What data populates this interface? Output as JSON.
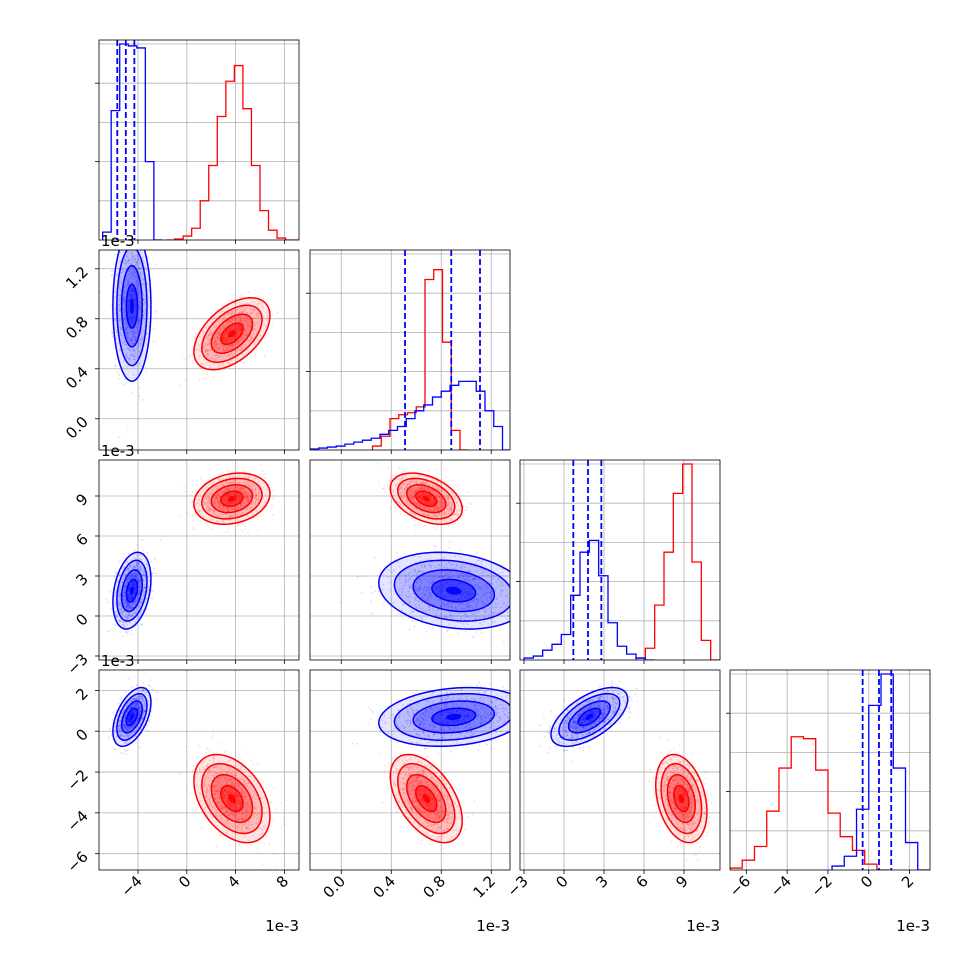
{
  "chart_data": {
    "type": "corner",
    "grid": true,
    "colors": {
      "A": "#0000ff",
      "B": "#ff0000"
    },
    "parameters": [
      {
        "id": "p0",
        "range": [
          -0.0072,
          0.0092
        ],
        "ticks": [
          -0.004,
          0,
          0.004,
          0.008
        ],
        "tick_labels": [
          "−4",
          "0",
          "4",
          "8"
        ],
        "offset": "1e-3",
        "hist_bins": 24,
        "hist": {
          "A": {
            "x": [
              -0.0069,
              -0.0062,
              -0.0055,
              -0.0048,
              -0.0041,
              -0.0034,
              -0.0027
            ],
            "h": [
              0.04,
              0.66,
              1.0,
              0.99,
              0.98,
              0.4,
              0.0
            ]
          },
          "B": {
            "x": [
              -0.0017,
              -0.001,
              -0.0003,
              0.0004,
              0.0011,
              0.0018,
              0.0025,
              0.0032,
              0.0039,
              0.0046,
              0.0053,
              0.006,
              0.0067,
              0.0074,
              0.0081,
              0.0088
            ],
            "h": [
              0.0,
              0.005,
              0.02,
              0.06,
              0.2,
              0.38,
              0.63,
              0.81,
              0.89,
              0.67,
              0.38,
              0.15,
              0.05,
              0.01,
              0.0,
              0.0
            ]
          }
        },
        "quantiles_A": [
          -0.0057,
          -0.005,
          -0.0043
        ]
      },
      {
        "id": "p1",
        "range": [
          -0.00025,
          0.00135
        ],
        "ticks": [
          0,
          0.0004,
          0.0008,
          0.0012
        ],
        "tick_labels": [
          "0.0",
          "0.4",
          "0.8",
          "1.2"
        ],
        "offset": "1e-3",
        "hist": {
          "A": {
            "x": [
              -0.00025,
              -0.00018,
              -0.00011,
              -4e-05,
              3e-05,
              0.0001,
              0.00017,
              0.00024,
              0.00031,
              0.00038,
              0.00045,
              0.00052,
              0.00059,
              0.00066,
              0.00073,
              0.0008,
              0.00087,
              0.00094,
              0.00101,
              0.00108,
              0.00115,
              0.00122,
              0.00129
            ],
            "h": [
              0.005,
              0.01,
              0.015,
              0.02,
              0.03,
              0.04,
              0.05,
              0.06,
              0.08,
              0.1,
              0.12,
              0.16,
              0.2,
              0.23,
              0.27,
              0.3,
              0.33,
              0.35,
              0.35,
              0.3,
              0.2,
              0.12,
              0.0
            ]
          },
          "B": {
            "x": [
              0.00025,
              0.00032,
              0.00039,
              0.00046,
              0.00053,
              0.0006,
              0.00067,
              0.00074,
              0.00081,
              0.00088,
              0.00095
            ],
            "h": [
              0.02,
              0.07,
              0.16,
              0.18,
              0.19,
              0.22,
              0.87,
              0.92,
              0.55,
              0.1,
              0.0
            ]
          }
        },
        "quantiles_A": [
          0.00051,
          0.00088,
          0.00111
        ]
      },
      {
        "id": "p2",
        "range": [
          -0.0033,
          0.0117
        ],
        "ticks": [
          -0.003,
          0,
          0.003,
          0.006,
          0.009
        ],
        "tick_labels": [
          "−3",
          "0",
          "3",
          "6",
          "9"
        ],
        "offset": "1e-3",
        "hist": {
          "A": {
            "x": [
              -0.003,
              -0.0023,
              -0.0016,
              -0.0009,
              -0.0002,
              0.0005,
              0.0012,
              0.0019,
              0.0026,
              0.0033,
              0.004,
              0.0047,
              0.0054,
              0.0061
            ],
            "h": [
              0.01,
              0.02,
              0.05,
              0.08,
              0.13,
              0.33,
              0.55,
              0.61,
              0.43,
              0.19,
              0.07,
              0.03,
              0.01,
              0.0
            ]
          },
          "B": {
            "x": [
              0.0054,
              0.0061,
              0.0068,
              0.0075,
              0.0082,
              0.0089,
              0.0096,
              0.0103,
              0.011
            ],
            "h": [
              0.01,
              0.06,
              0.28,
              0.55,
              0.85,
              1.0,
              0.5,
              0.1,
              0.0
            ]
          }
        },
        "quantiles_A": [
          0.0007,
          0.0018,
          0.0028
        ]
      },
      {
        "id": "p3",
        "range": [
          -0.0068,
          0.003
        ],
        "ticks": [
          -0.006,
          -0.004,
          -0.002,
          0,
          0.002
        ],
        "tick_labels": [
          "−6",
          "−4",
          "−2",
          "0",
          "2"
        ],
        "offset": "1e-3",
        "hist": {
          "A": {
            "x": [
              -0.0018,
              -0.0012,
              -0.0006,
              0.0,
              0.0006,
              0.0012,
              0.0018,
              0.0024
            ],
            "h": [
              0.02,
              0.07,
              0.31,
              0.84,
              1.0,
              0.52,
              0.14,
              0.0
            ]
          },
          "B": {
            "x": [
              -0.0068,
              -0.0062,
              -0.0056,
              -0.005,
              -0.0044,
              -0.0038,
              -0.0032,
              -0.0026,
              -0.002,
              -0.0014,
              -0.0008,
              -0.0002,
              0.0004
            ],
            "h": [
              0.01,
              0.05,
              0.12,
              0.3,
              0.52,
              0.68,
              0.67,
              0.51,
              0.29,
              0.17,
              0.1,
              0.03,
              0.0
            ]
          }
        },
        "quantiles_A": [
          -0.0003,
          0.0005,
          0.0011
        ]
      }
    ],
    "clusters": [
      {
        "series": "A",
        "mean": [
          -0.0045,
          0.0009,
          0.0019,
          0.0007
        ],
        "sd": [
          0.00065,
          0.00025,
          0.0012,
          0.0006
        ],
        "corr": [
          [
            1,
            0,
            0.3,
            0.5
          ],
          [
            0,
            1,
            -0.2,
            0.2
          ],
          [
            0.3,
            -0.2,
            1,
            0.6
          ],
          [
            0.5,
            0.2,
            0.6,
            1
          ]
        ]
      },
      {
        "series": "B",
        "mean": [
          0.0037,
          0.00068,
          0.0088,
          -0.0033
        ],
        "sd": [
          0.0013,
          0.00012,
          0.0008,
          0.0009
        ],
        "corr": [
          [
            1,
            0.5,
            0.2,
            -0.4
          ],
          [
            0.5,
            1,
            -0.4,
            -0.5
          ],
          [
            0.2,
            -0.4,
            1,
            -0.3
          ],
          [
            -0.4,
            -0.5,
            -0.3,
            1
          ]
        ]
      }
    ]
  }
}
